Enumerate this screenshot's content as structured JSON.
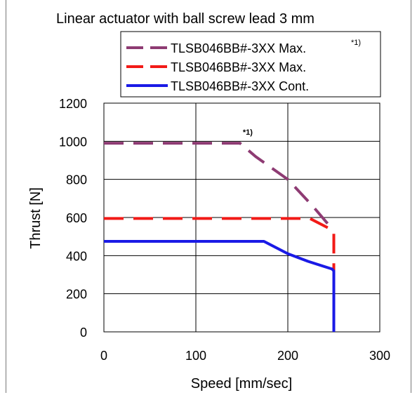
{
  "chart_data": {
    "type": "line",
    "title": "Linear actuator with ball screw lead 3 mm",
    "xlabel": "Speed [mm/sec]",
    "ylabel": "Thrust [N]",
    "xlim": [
      0,
      300
    ],
    "ylim": [
      0,
      1200
    ],
    "xticks": [
      0,
      100,
      200,
      300
    ],
    "yticks": [
      0,
      200,
      400,
      600,
      800,
      1000,
      1200
    ],
    "grid": true,
    "legend_position": "top-right",
    "annotation": "*1)",
    "series": [
      {
        "name": "TLSB046BB#-3XX Max.",
        "superscript": "*1)",
        "color": "#8E3B73",
        "style": "dashed",
        "x": [
          0,
          148,
          165,
          200,
          227,
          250
        ],
        "y": [
          990,
          990,
          920,
          800,
          660,
          530
        ]
      },
      {
        "name": "TLSB046BB#-3XX Max.",
        "color": "#F21A17",
        "style": "dashed",
        "x": [
          0,
          224,
          250,
          250
        ],
        "y": [
          595,
          595,
          530,
          240
        ]
      },
      {
        "name": "TLSB046BB#-3XX Cont.",
        "color": "#1A1AE6",
        "style": "solid",
        "x": [
          0,
          174,
          200,
          222,
          248,
          250,
          250
        ],
        "y": [
          475,
          475,
          410,
          370,
          330,
          320,
          0
        ]
      }
    ]
  }
}
